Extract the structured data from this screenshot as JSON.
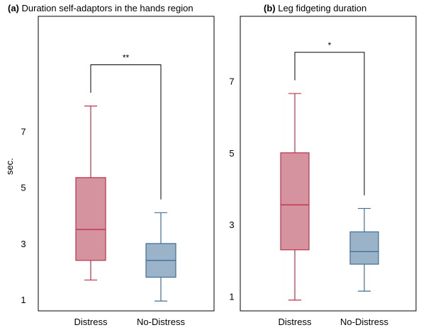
{
  "chart_data": [
    {
      "type": "box",
      "title_tag": "(a)",
      "title": "Duration self-adaptors in the hands region",
      "xlabel": "",
      "ylabel": "sec.",
      "ylim": [
        0.6,
        11.1
      ],
      "yticks": [
        1,
        3,
        5,
        7
      ],
      "categories": [
        "Distress",
        "No-Distress"
      ],
      "boxes": [
        {
          "category": "Distress",
          "min": 1.7,
          "q1": 2.4,
          "median": 3.5,
          "q3": 5.35,
          "max": 7.9,
          "color": "#c0304a",
          "fill": "#d4939e"
        },
        {
          "category": "No-Distress",
          "min": 0.95,
          "q1": 1.8,
          "median": 2.4,
          "q3": 3.0,
          "max": 4.1,
          "color": "#3f6f96",
          "fill": "#9ab3c9"
        }
      ],
      "significance": {
        "from": "Distress",
        "to": "No-Distress",
        "label": "**"
      }
    },
    {
      "type": "box",
      "title_tag": "(b)",
      "title": "Leg fidgeting duration",
      "xlabel": "",
      "ylabel": "",
      "ylim": [
        0.6,
        8.8
      ],
      "yticks": [
        1,
        3,
        5,
        7
      ],
      "categories": [
        "Distress",
        "No-Distress"
      ],
      "boxes": [
        {
          "category": "Distress",
          "min": 0.9,
          "q1": 2.3,
          "median": 3.55,
          "q3": 5.0,
          "max": 6.65,
          "color": "#c0304a",
          "fill": "#d4939e"
        },
        {
          "category": "No-Distress",
          "min": 1.15,
          "q1": 1.9,
          "median": 2.25,
          "q3": 2.8,
          "max": 3.45,
          "color": "#3f6f96",
          "fill": "#9ab3c9"
        }
      ],
      "significance": {
        "from": "Distress",
        "to": "No-Distress",
        "label": "*"
      }
    }
  ]
}
